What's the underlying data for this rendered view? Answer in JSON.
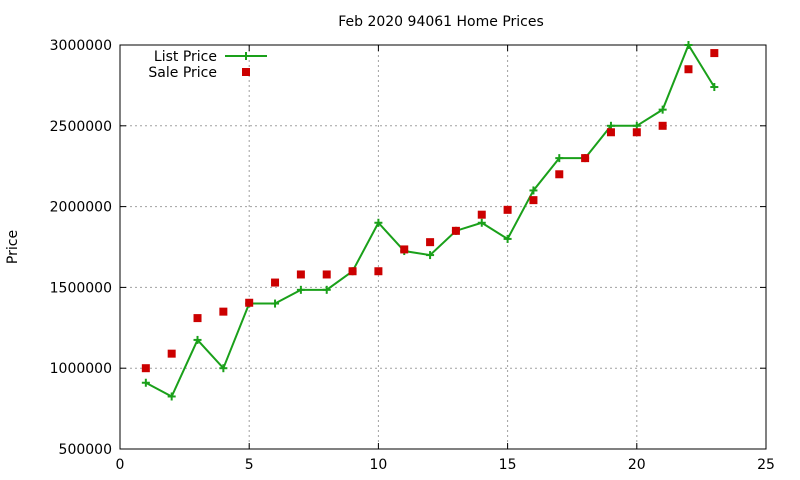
{
  "chart_data": {
    "type": "line",
    "title": "Feb 2020 94061 Home Prices",
    "xlabel": "",
    "ylabel": "Price",
    "xlim": [
      0,
      25
    ],
    "ylim": [
      500000,
      3000000
    ],
    "xticks": [
      0,
      5,
      10,
      15,
      20,
      25
    ],
    "yticks": [
      500000,
      1000000,
      1500000,
      2000000,
      2500000,
      3000000
    ],
    "grid": true,
    "legend_position": "top-left",
    "series": [
      {
        "name": "List Price",
        "style": "line-with-plus-markers",
        "color": "#1aa01a",
        "x": [
          1,
          2,
          3,
          4,
          5,
          6,
          7,
          8,
          9,
          10,
          11,
          12,
          13,
          14,
          15,
          16,
          17,
          18,
          19,
          20,
          21,
          22,
          23
        ],
        "values": [
          910000,
          825000,
          1175000,
          1000000,
          1400000,
          1400000,
          1485000,
          1485000,
          1600000,
          1900000,
          1725000,
          1700000,
          1850000,
          1900000,
          1800000,
          2100000,
          2300000,
          2300000,
          2500000,
          2500000,
          2600000,
          3000000,
          2740000
        ]
      },
      {
        "name": "Sale Price",
        "style": "square-markers",
        "color": "#cc0000",
        "x": [
          1,
          2,
          3,
          4,
          5,
          6,
          7,
          8,
          9,
          10,
          11,
          12,
          13,
          14,
          15,
          16,
          17,
          18,
          19,
          20,
          21,
          22,
          23
        ],
        "values": [
          1000000,
          1090000,
          1310000,
          1350000,
          1405000,
          1530000,
          1580000,
          1580000,
          1600000,
          1600000,
          1735000,
          1780000,
          1850000,
          1950000,
          1980000,
          2040000,
          2200000,
          2300000,
          2460000,
          2460000,
          2500000,
          2850000,
          2950000
        ]
      }
    ]
  }
}
